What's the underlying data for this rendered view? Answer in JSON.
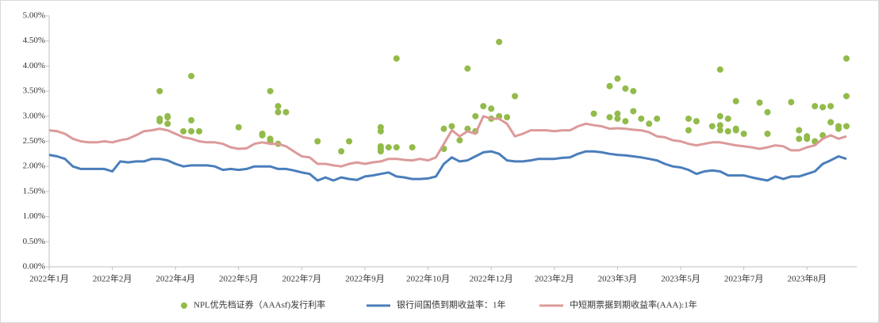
{
  "chart_data": {
    "type": "line",
    "categories": [
      "2022年1月",
      null,
      null,
      null,
      null,
      null,
      null,
      null,
      "2022年2月",
      null,
      null,
      null,
      null,
      null,
      null,
      null,
      "2022年4月",
      null,
      null,
      null,
      null,
      null,
      null,
      null,
      "2022年5月",
      null,
      null,
      null,
      null,
      null,
      null,
      null,
      "2022年7月",
      null,
      null,
      null,
      null,
      null,
      null,
      null,
      "2022年9月",
      null,
      null,
      null,
      null,
      null,
      null,
      null,
      "2022年10月",
      null,
      null,
      null,
      null,
      null,
      null,
      null,
      "2022年12月",
      null,
      null,
      null,
      null,
      null,
      null,
      null,
      "2023年2月",
      null,
      null,
      null,
      null,
      null,
      null,
      null,
      "2023年3月",
      null,
      null,
      null,
      null,
      null,
      null,
      null,
      "2023年5月",
      null,
      null,
      null,
      null,
      null,
      null,
      null,
      "2023年7月",
      null,
      null,
      null,
      null,
      null,
      null,
      null,
      "2023年8月",
      null,
      null,
      null,
      null,
      null
    ],
    "ylim": [
      0,
      5
    ],
    "yticks": [
      {
        "value": 0,
        "label": "0.00%"
      },
      {
        "value": 0.5,
        "label": "0.50%"
      },
      {
        "value": 1,
        "label": "1.00%"
      },
      {
        "value": 1.5,
        "label": "1.50%"
      },
      {
        "value": 2,
        "label": "2.00%"
      },
      {
        "value": 2.5,
        "label": "2.50%"
      },
      {
        "value": 3,
        "label": "3.00%"
      },
      {
        "value": 3.5,
        "label": "3.50%"
      },
      {
        "value": 4,
        "label": "4.00%"
      },
      {
        "value": 4.5,
        "label": "4.50%"
      },
      {
        "value": 5,
        "label": "5.00%"
      }
    ],
    "grid": false,
    "series": [
      {
        "name": "NPL优先档证券（AAAsf)发行利率",
        "type": "scatter",
        "color": "#92bb4a",
        "x": [
          14,
          14,
          14,
          15,
          15,
          15,
          17,
          18,
          18,
          18,
          19,
          24,
          27,
          27,
          28,
          28,
          28,
          29,
          29,
          29,
          30,
          34,
          37,
          38,
          42,
          42,
          42,
          42,
          42,
          43,
          44,
          44,
          46,
          50,
          50,
          51,
          52,
          53,
          53,
          54,
          54,
          55,
          56,
          56,
          57,
          57,
          58,
          59,
          69,
          71,
          71,
          72,
          72,
          72,
          73,
          73,
          74,
          74,
          75,
          76,
          77,
          81,
          81,
          82,
          84,
          85,
          85,
          85,
          85,
          86,
          86,
          87,
          87,
          87,
          88,
          90,
          91,
          91,
          94,
          95,
          95,
          96,
          96,
          97,
          97,
          98,
          98,
          99,
          99,
          100,
          100,
          101,
          101,
          101
        ],
        "values": [
          2.95,
          3.5,
          2.9,
          2.85,
          2.98,
          3.0,
          2.7,
          3.8,
          2.92,
          2.7,
          2.7,
          2.78,
          2.65,
          2.62,
          3.5,
          2.5,
          2.55,
          3.2,
          3.08,
          2.45,
          3.08,
          2.5,
          2.3,
          2.5,
          2.35,
          2.4,
          2.3,
          2.78,
          2.7,
          2.38,
          4.15,
          2.38,
          2.38,
          2.35,
          2.75,
          2.8,
          2.52,
          3.95,
          2.75,
          2.7,
          3.0,
          3.2,
          3.15,
          2.95,
          3.0,
          4.48,
          2.98,
          3.4,
          3.05,
          3.6,
          2.98,
          3.75,
          3.05,
          2.95,
          2.9,
          3.55,
          3.5,
          3.1,
          2.95,
          2.85,
          2.95,
          2.95,
          2.72,
          2.9,
          2.8,
          2.82,
          3.0,
          2.72,
          3.93,
          2.95,
          2.7,
          3.3,
          2.75,
          2.72,
          2.65,
          3.27,
          3.08,
          2.65,
          3.28,
          2.55,
          2.72,
          2.6,
          2.55,
          3.2,
          2.5,
          3.18,
          2.62,
          3.2,
          2.88,
          2.75,
          2.8,
          4.15,
          3.4,
          2.8
        ]
      },
      {
        "name": "银行间国债到期收益率：1年",
        "type": "line",
        "color": "#4a7ebb",
        "values": [
          2.23,
          2.2,
          2.15,
          2.0,
          1.95,
          1.95,
          1.95,
          1.95,
          1.9,
          2.1,
          2.08,
          2.1,
          2.1,
          2.15,
          2.15,
          2.12,
          2.05,
          2.0,
          2.02,
          2.02,
          2.02,
          2.0,
          1.93,
          1.95,
          1.93,
          1.95,
          2.0,
          2.0,
          2.0,
          1.95,
          1.95,
          1.92,
          1.88,
          1.85,
          1.72,
          1.78,
          1.72,
          1.78,
          1.75,
          1.73,
          1.8,
          1.82,
          1.85,
          1.88,
          1.8,
          1.78,
          1.75,
          1.75,
          1.76,
          1.8,
          2.05,
          2.18,
          2.1,
          2.12,
          2.2,
          2.28,
          2.3,
          2.25,
          2.12,
          2.1,
          2.1,
          2.12,
          2.15,
          2.15,
          2.15,
          2.17,
          2.18,
          2.25,
          2.3,
          2.3,
          2.28,
          2.25,
          2.23,
          2.22,
          2.2,
          2.18,
          2.15,
          2.12,
          2.05,
          2.0,
          1.98,
          1.93,
          1.85,
          1.9,
          1.92,
          1.9,
          1.82,
          1.82,
          1.82,
          1.78,
          1.75,
          1.72,
          1.8,
          1.75,
          1.8,
          1.8,
          1.85,
          1.9,
          2.05,
          2.12,
          2.2,
          2.15
        ]
      },
      {
        "name": "中短期票据到期收益率(AAA):1年",
        "type": "line",
        "color": "#dc9a9a",
        "values": [
          2.72,
          2.7,
          2.65,
          2.55,
          2.5,
          2.48,
          2.48,
          2.5,
          2.48,
          2.52,
          2.55,
          2.62,
          2.7,
          2.72,
          2.75,
          2.72,
          2.65,
          2.58,
          2.55,
          2.5,
          2.48,
          2.48,
          2.45,
          2.38,
          2.35,
          2.36,
          2.45,
          2.48,
          2.45,
          2.45,
          2.4,
          2.3,
          2.2,
          2.18,
          2.05,
          2.05,
          2.02,
          2.0,
          2.05,
          2.08,
          2.05,
          2.08,
          2.1,
          2.15,
          2.15,
          2.13,
          2.12,
          2.15,
          2.12,
          2.18,
          2.45,
          2.72,
          2.6,
          2.7,
          2.65,
          3.0,
          2.95,
          2.95,
          2.85,
          2.6,
          2.65,
          2.72,
          2.72,
          2.72,
          2.7,
          2.72,
          2.72,
          2.8,
          2.85,
          2.82,
          2.8,
          2.75,
          2.76,
          2.75,
          2.73,
          2.72,
          2.68,
          2.6,
          2.58,
          2.52,
          2.5,
          2.45,
          2.42,
          2.45,
          2.48,
          2.48,
          2.45,
          2.42,
          2.4,
          2.38,
          2.35,
          2.38,
          2.42,
          2.4,
          2.32,
          2.32,
          2.38,
          2.42,
          2.55,
          2.62,
          2.55,
          2.6
        ]
      }
    ]
  }
}
